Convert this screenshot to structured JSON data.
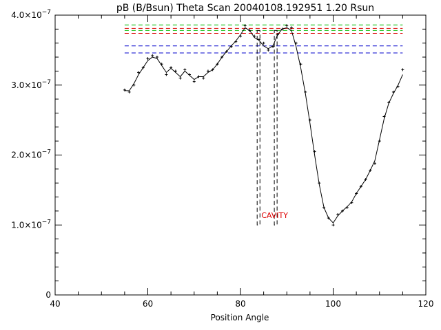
{
  "chart_data": {
    "type": "scatter",
    "title": "pB (B/Bsun) Theta Scan 20040108.192951 1.20 Rsun",
    "xlabel": "Position Angle",
    "ylabel": "",
    "xlim": [
      40,
      120
    ],
    "ylim": [
      0,
      4e-07
    ],
    "x_ticks": [
      {
        "value": 40,
        "label": "40"
      },
      {
        "value": 60,
        "label": "60"
      },
      {
        "value": 80,
        "label": "80"
      },
      {
        "value": 100,
        "label": "100"
      },
      {
        "value": 120,
        "label": "120"
      }
    ],
    "x_minor_step": 5,
    "y_ticks": [
      {
        "value": 0,
        "label": "0",
        "exp": ""
      },
      {
        "value": 1e-07,
        "label": "1.0×10",
        "exp": "−7"
      },
      {
        "value": 2e-07,
        "label": "2.0×10",
        "exp": "−7"
      },
      {
        "value": 3e-07,
        "label": "3.0×10",
        "exp": "−7"
      },
      {
        "value": 4e-07,
        "label": "4.0×10",
        "exp": "−7"
      }
    ],
    "y_minor_step": 2e-08,
    "grid": false,
    "series": [
      {
        "kind": "points",
        "marker": "plus",
        "color": "#000000",
        "x": [
          55,
          56,
          57,
          58,
          59,
          60,
          61,
          62,
          63,
          64,
          65,
          66,
          67,
          68,
          69,
          70,
          71,
          72,
          73,
          74,
          75,
          76,
          77,
          78,
          79,
          80,
          81,
          82,
          83,
          84,
          85,
          86,
          87,
          88,
          89,
          90,
          91,
          92,
          93,
          94,
          95,
          96,
          97,
          98,
          99,
          100,
          101,
          102,
          103,
          104,
          105,
          106,
          107,
          108,
          109,
          110,
          111,
          112,
          113,
          114,
          115
        ],
        "y": [
          2.93e-07,
          2.9e-07,
          3e-07,
          3.18e-07,
          3.25e-07,
          3.38e-07,
          3.42e-07,
          3.4e-07,
          3.3e-07,
          3.15e-07,
          3.25e-07,
          3.2e-07,
          3.1e-07,
          3.22e-07,
          3.15e-07,
          3.05e-07,
          3.12e-07,
          3.1e-07,
          3.2e-07,
          3.22e-07,
          3.3e-07,
          3.4e-07,
          3.48e-07,
          3.55e-07,
          3.62e-07,
          3.7e-07,
          3.85e-07,
          3.78e-07,
          3.7e-07,
          3.65e-07,
          3.6e-07,
          3.5e-07,
          3.55e-07,
          3.72e-07,
          3.8e-07,
          3.85e-07,
          3.82e-07,
          3.6e-07,
          3.3e-07,
          2.9e-07,
          2.5e-07,
          2.05e-07,
          1.6e-07,
          1.25e-07,
          1.1e-07,
          1e-07,
          1.15e-07,
          1.2e-07,
          1.25e-07,
          1.32e-07,
          1.45e-07,
          1.55e-07,
          1.65e-07,
          1.78e-07,
          1.88e-07,
          2.2e-07,
          2.55e-07,
          2.75e-07,
          2.9e-07,
          2.98e-07,
          3.22e-07
        ]
      },
      {
        "kind": "line",
        "style": "solid",
        "color": "#000000",
        "x": [
          55,
          56,
          57,
          58,
          59,
          60,
          61,
          62,
          63,
          64,
          65,
          66,
          67,
          68,
          69,
          70,
          71,
          72,
          73,
          74,
          75,
          76,
          77,
          78,
          79,
          80,
          81,
          82,
          83,
          84,
          85,
          86,
          87,
          88,
          89,
          90,
          91,
          92,
          93,
          94,
          95,
          96,
          97,
          98,
          99,
          100,
          101,
          102,
          103,
          104,
          105,
          106,
          107,
          108,
          109,
          110,
          111,
          112,
          113,
          114,
          115
        ],
        "y": [
          2.92e-07,
          2.92e-07,
          3.02e-07,
          3.15e-07,
          3.25e-07,
          3.35e-07,
          3.4e-07,
          3.38e-07,
          3.28e-07,
          3.18e-07,
          3.24e-07,
          3.18e-07,
          3.12e-07,
          3.2e-07,
          3.14e-07,
          3.08e-07,
          3.12e-07,
          3.12e-07,
          3.18e-07,
          3.22e-07,
          3.3e-07,
          3.4e-07,
          3.48e-07,
          3.56e-07,
          3.63e-07,
          3.72e-07,
          3.82e-07,
          3.78e-07,
          3.68e-07,
          3.64e-07,
          3.56e-07,
          3.52e-07,
          3.56e-07,
          3.72e-07,
          3.8e-07,
          3.82e-07,
          3.78e-07,
          3.55e-07,
          3.25e-07,
          2.88e-07,
          2.45e-07,
          2e-07,
          1.58e-07,
          1.25e-07,
          1.1e-07,
          1.03e-07,
          1.13e-07,
          1.2e-07,
          1.26e-07,
          1.33e-07,
          1.45e-07,
          1.55e-07,
          1.65e-07,
          1.78e-07,
          1.92e-07,
          2.22e-07,
          2.52e-07,
          2.74e-07,
          2.88e-07,
          3e-07,
          3.15e-07
        ]
      }
    ],
    "hlines": [
      {
        "y": 3.86e-07,
        "x0": 55,
        "x1": 115,
        "color": "#00bb00",
        "style": "dashed"
      },
      {
        "y": 3.81e-07,
        "x0": 55,
        "x1": 115,
        "color": "#dd0000",
        "style": "dashed"
      },
      {
        "y": 3.78e-07,
        "x0": 55,
        "x1": 115,
        "color": "#00bb00",
        "style": "dashed"
      },
      {
        "y": 3.74e-07,
        "x0": 55,
        "x1": 115,
        "color": "#dd0000",
        "style": "dashed"
      },
      {
        "y": 3.56e-07,
        "x0": 55,
        "x1": 115,
        "color": "#0000cc",
        "style": "dashed"
      },
      {
        "y": 3.46e-07,
        "x0": 55,
        "x1": 115,
        "color": "#0000cc",
        "style": "dashed"
      }
    ],
    "cavity_boxes": [
      {
        "x0": 83.6,
        "x1": 84.2,
        "y0": 1e-07,
        "y1": 3.78e-07
      },
      {
        "x0": 87.3,
        "x1": 87.9,
        "y0": 1e-07,
        "y1": 3.78e-07
      }
    ],
    "annotations": [
      {
        "text": "CAVITY",
        "x": 84.5,
        "y": 1.1e-07,
        "color": "#dd0000"
      }
    ]
  }
}
